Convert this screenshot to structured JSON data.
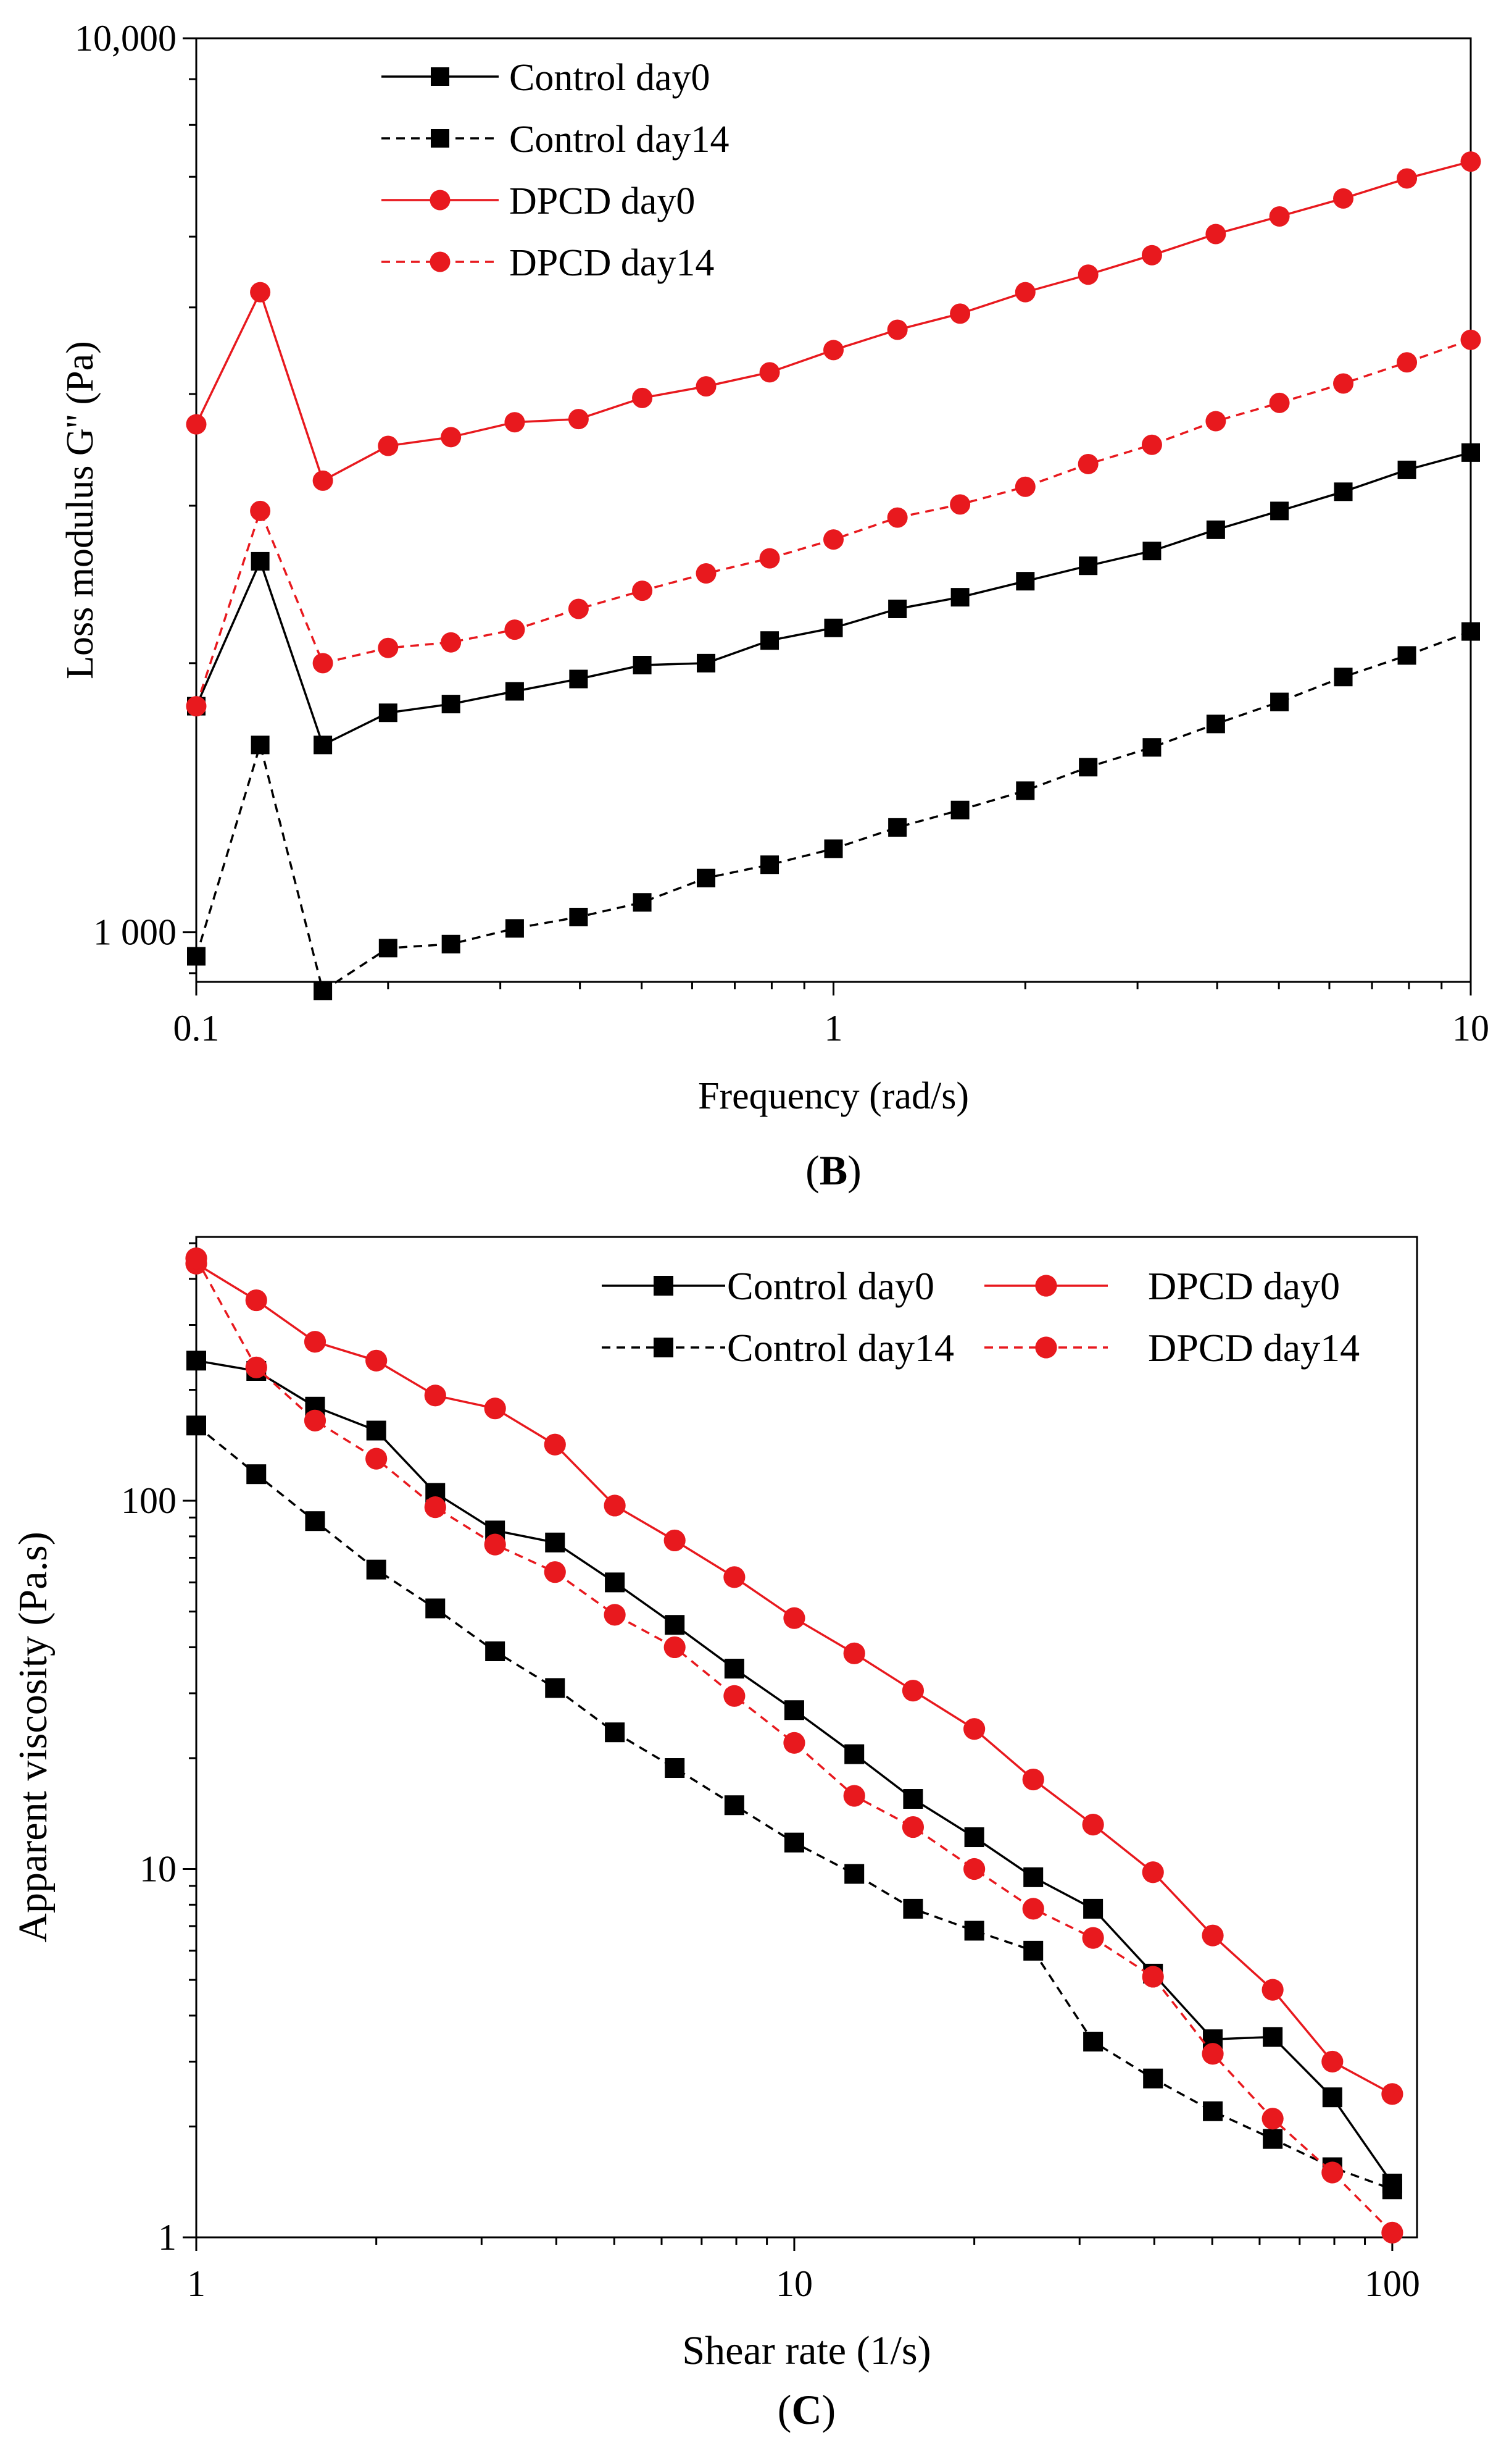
{
  "colors": {
    "black": "#000000",
    "red": "#e8191e",
    "axis": "#000000"
  },
  "chart_data": [
    {
      "panel_label": "(B)",
      "type": "line",
      "xscale": "log",
      "yscale": "log",
      "xlabel": "Frequency (rad/s)",
      "ylabel": "Loss modulus G'' (Pa)",
      "xlim": [
        0.1,
        10
      ],
      "ylim": [
        880,
        10000
      ],
      "x_ticks": [
        {
          "value": 0.1,
          "label": "0.1"
        },
        {
          "value": 1,
          "label": "1"
        },
        {
          "value": 10,
          "label": "10"
        }
      ],
      "y_ticks": [
        {
          "value": 1000,
          "label": "1 000"
        },
        {
          "value": 10000,
          "label": "10,000"
        }
      ],
      "legend_position": "top-left",
      "x": [
        0.1,
        0.126,
        0.158,
        0.2,
        0.251,
        0.316,
        0.398,
        0.501,
        0.631,
        0.794,
        1.0,
        1.26,
        1.58,
        2.0,
        2.51,
        3.16,
        3.98,
        5.01,
        6.31,
        7.94,
        10.0
      ],
      "series": [
        {
          "name": "Control day0",
          "color": "#000000",
          "marker": "square",
          "dash": "solid",
          "values": [
            1790,
            2600,
            1620,
            1760,
            1800,
            1860,
            1920,
            1990,
            2000,
            2120,
            2190,
            2300,
            2370,
            2470,
            2570,
            2670,
            2820,
            2960,
            3110,
            3290,
            3440
          ]
        },
        {
          "name": "Control day14",
          "color": "#000000",
          "marker": "square",
          "dash": "dashed",
          "values": [
            940,
            1620,
            860,
            960,
            970,
            1010,
            1040,
            1080,
            1150,
            1190,
            1240,
            1310,
            1370,
            1440,
            1530,
            1610,
            1710,
            1810,
            1930,
            2040,
            2170
          ]
        },
        {
          "name": "DPCD day0",
          "color": "#e8191e",
          "marker": "circle",
          "dash": "solid",
          "values": [
            3700,
            5200,
            3200,
            3500,
            3580,
            3720,
            3750,
            3960,
            4080,
            4230,
            4480,
            4720,
            4920,
            5200,
            5440,
            5720,
            6040,
            6320,
            6620,
            6970,
            7280
          ]
        },
        {
          "name": "DPCD day14",
          "color": "#e8191e",
          "marker": "circle",
          "dash": "dashed",
          "values": [
            1790,
            2960,
            2000,
            2080,
            2110,
            2180,
            2300,
            2410,
            2520,
            2620,
            2750,
            2910,
            3010,
            3150,
            3340,
            3510,
            3730,
            3910,
            4110,
            4340,
            4600
          ]
        }
      ]
    },
    {
      "panel_label": "(C)",
      "type": "line",
      "xscale": "log",
      "yscale": "log",
      "xlabel": "Shear rate (1/s)",
      "ylabel": "Apparent viscosity (Pa.s)",
      "xlim": [
        1,
        110
      ],
      "ylim": [
        1,
        520
      ],
      "x_ticks": [
        {
          "value": 1,
          "label": "1"
        },
        {
          "value": 10,
          "label": "10"
        },
        {
          "value": 100,
          "label": "100"
        }
      ],
      "y_ticks": [
        {
          "value": 1,
          "label": "1"
        },
        {
          "value": 10,
          "label": "10"
        },
        {
          "value": 100,
          "label": "100"
        }
      ],
      "legend_position": "top-right",
      "x": [
        1.0,
        1.26,
        1.58,
        2.0,
        2.51,
        3.16,
        3.98,
        5.01,
        6.31,
        7.94,
        10.0,
        12.6,
        15.8,
        20.0,
        25.1,
        31.6,
        39.8,
        50.1,
        63.1,
        79.4,
        100
      ],
      "series": [
        {
          "name": "Control day0",
          "color": "#000000",
          "marker": "square",
          "dash": "solid",
          "values": [
            240,
            225,
            180,
            155,
            105,
            83,
            77,
            60,
            46,
            35,
            27,
            20.5,
            15.5,
            12.2,
            9.5,
            7.8,
            5.2,
            3.45,
            3.5,
            2.4,
            1.4
          ]
        },
        {
          "name": "Control day14",
          "color": "#000000",
          "marker": "square",
          "dash": "dashed",
          "values": [
            160,
            118,
            88,
            65,
            51,
            39,
            31,
            23.5,
            18.8,
            14.9,
            11.8,
            9.7,
            7.8,
            6.8,
            6.0,
            3.4,
            2.7,
            2.2,
            1.85,
            1.55,
            1.35
          ]
        },
        {
          "name": "DPCD day0",
          "color": "#e8191e",
          "marker": "circle",
          "dash": "solid",
          "values": [
            440,
            350,
            270,
            240,
            193,
            178,
            142,
            97,
            78,
            62,
            48,
            38.5,
            30.5,
            24,
            17.5,
            13.2,
            9.8,
            6.6,
            4.7,
            3.0,
            2.45
          ]
        },
        {
          "name": "DPCD day14",
          "color": "#e8191e",
          "marker": "circle",
          "dash": "dashed",
          "values": [
            455,
            230,
            165,
            130,
            96,
            76,
            64,
            49,
            40,
            29.5,
            22,
            15.8,
            13,
            10,
            7.8,
            6.5,
            5.1,
            3.15,
            2.1,
            1.5,
            1.03
          ]
        }
      ]
    }
  ]
}
